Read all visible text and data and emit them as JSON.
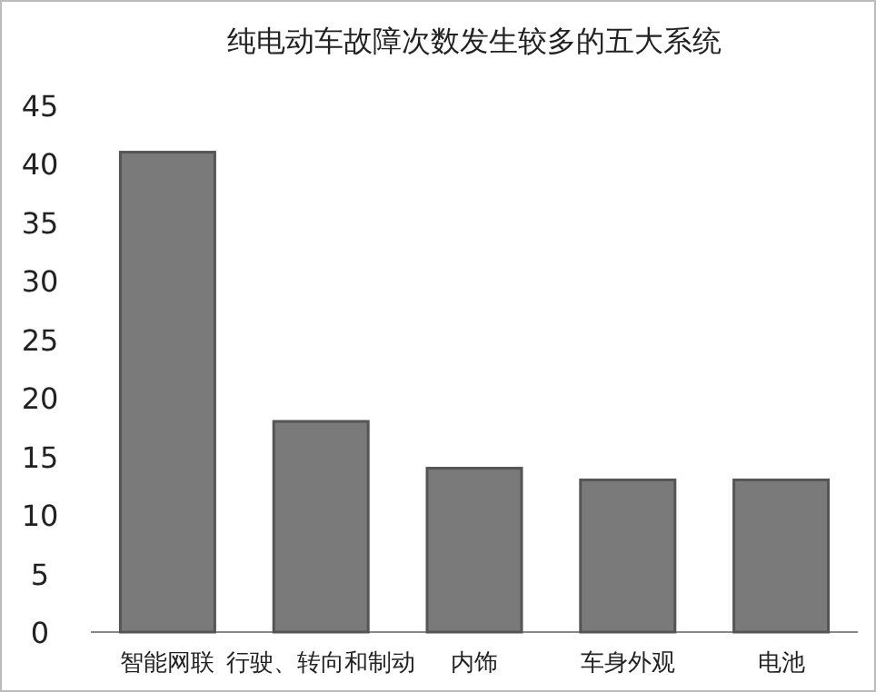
{
  "chart_data": {
    "type": "bar",
    "title": "纯电动车故障次数发生较多的五大系统",
    "categories": [
      "智能网联",
      "行驶、转向和制动",
      "内饰",
      "车身外观",
      "电池"
    ],
    "values": [
      41,
      18,
      14,
      13,
      13
    ],
    "color": "#7a7a7a",
    "ylim": [
      0,
      45
    ],
    "yticks": [
      0,
      5,
      10,
      15,
      20,
      25,
      30,
      35,
      40,
      45
    ],
    "grid": false
  }
}
